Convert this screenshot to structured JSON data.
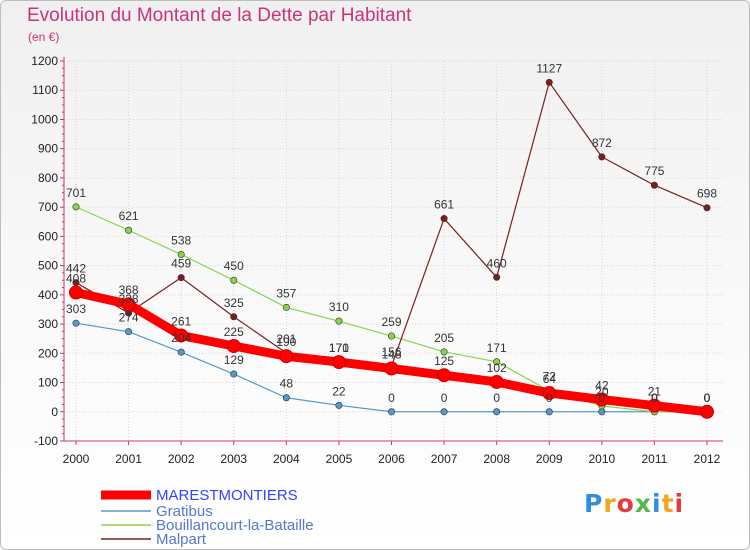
{
  "header": {
    "title": "Evolution du Montant de la Dette par Habitant",
    "subtitle": "(en €)"
  },
  "logo": {
    "text": "Proxiti",
    "colors": [
      "#2f8ee0",
      "#f4a41d",
      "#e63b3b",
      "#55b848",
      "#2f8ee0",
      "#f4a41d",
      "#e63b3b"
    ]
  },
  "chart_data": {
    "type": "line",
    "title": "Evolution du Montant de la Dette par Habitant",
    "subtitle": "(en €)",
    "xlabel": "",
    "ylabel": "",
    "x": [
      2000,
      2001,
      2002,
      2003,
      2004,
      2005,
      2006,
      2007,
      2008,
      2009,
      2010,
      2011,
      2012
    ],
    "ylim": [
      -100,
      1200
    ],
    "yticks": [
      -100,
      0,
      100,
      200,
      300,
      400,
      500,
      600,
      700,
      800,
      900,
      1000,
      1100,
      1200
    ],
    "grid": true,
    "legend_position": "bottom-left",
    "series": [
      {
        "name": "MARESTMONTIERS",
        "color": "#ff0000",
        "values": [
          408,
          368,
          261,
          225,
          190,
          170,
          148,
          125,
          102,
          64,
          42,
          21,
          0
        ],
        "labels": [
          "408",
          "368",
          "261",
          "225",
          "190",
          "170",
          "148",
          "125",
          "102",
          "64",
          "42",
          "21",
          "0"
        ]
      },
      {
        "name": "Gratibus",
        "color": "#5599cc",
        "values": [
          303,
          274,
          204,
          129,
          48,
          22,
          0,
          0,
          0,
          0,
          0,
          0,
          0
        ],
        "labels": [
          "303",
          "274",
          "204",
          "129",
          "48",
          "22",
          "0",
          "0",
          "0",
          "0",
          "0",
          "0",
          "0"
        ]
      },
      {
        "name": "Bouillancourt-la-Bataille",
        "color": "#88d44a",
        "values": [
          701,
          621,
          538,
          450,
          357,
          310,
          259,
          205,
          171,
          72,
          20,
          0,
          0
        ],
        "labels": [
          "701",
          "621",
          "538",
          "450",
          "357",
          "310",
          "259",
          "205",
          "171",
          "72",
          "20",
          "0",
          "0"
        ]
      },
      {
        "name": "Malpart",
        "color": "#7a1f1f",
        "values": [
          442,
          338,
          459,
          325,
          201,
          171,
          156,
          661,
          460,
          1127,
          872,
          775,
          698
        ],
        "labels": [
          "442",
          "338",
          "459",
          "325",
          "201",
          "171",
          "156",
          "661",
          "460",
          "1127",
          "872",
          "775",
          "698"
        ]
      }
    ]
  }
}
